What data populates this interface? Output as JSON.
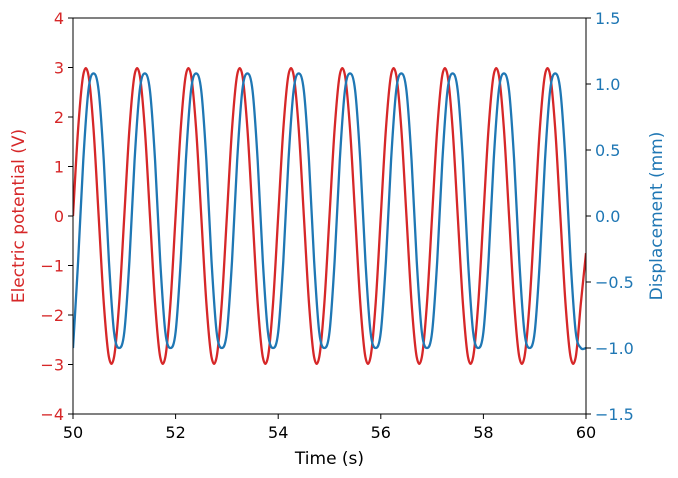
{
  "chart_data": {
    "type": "line",
    "title": "",
    "xlabel": "Time (s)",
    "ylabel_left": "Electric potential (V)",
    "ylabel_right": "Displacement (mm)",
    "xlim": [
      50,
      60
    ],
    "ylim_left": [
      -4,
      4
    ],
    "ylim_right": [
      -1.5,
      1.5
    ],
    "x_ticks": [
      "50",
      "52",
      "54",
      "56",
      "58",
      "60"
    ],
    "y_left_ticks": [
      "−4",
      "−3",
      "−2",
      "−1",
      "0",
      "1",
      "2",
      "3",
      "4"
    ],
    "y_right_ticks": [
      "−1.5",
      "−1.0",
      "−0.5",
      "0.0",
      "0.5",
      "1.0",
      "1.5"
    ],
    "grid": false,
    "legend": "none",
    "colors": {
      "left_axis": "#d62728",
      "right_axis": "#1f77b4"
    },
    "series": [
      {
        "axis": "left",
        "color": "#d62728",
        "x": [
          50.0,
          50.1,
          50.2,
          50.3,
          50.4,
          50.5,
          50.6,
          50.7,
          50.8,
          50.9,
          51.0,
          51.1,
          51.2,
          51.3,
          51.4,
          51.5,
          51.6,
          51.7,
          51.8,
          51.9,
          52.0,
          52.1,
          52.2,
          52.3,
          52.4,
          52.5,
          52.6,
          52.7,
          52.8,
          52.9,
          53.0,
          53.1,
          53.2,
          53.3,
          53.4,
          53.5,
          53.6,
          53.7,
          53.8,
          53.9,
          54.0,
          54.1,
          54.2,
          54.3,
          54.4,
          54.5,
          54.6,
          54.7,
          54.8,
          54.9,
          55.0,
          55.1,
          55.2,
          55.3,
          55.4,
          55.5,
          55.6,
          55.7,
          55.8,
          55.9,
          56.0,
          56.1,
          56.2,
          56.3,
          56.4,
          56.5,
          56.6,
          56.7,
          56.8,
          56.9,
          57.0,
          57.1,
          57.2,
          57.3,
          57.4,
          57.5,
          57.6,
          57.7,
          57.8,
          57.9,
          58.0,
          58.1,
          58.2,
          58.3,
          58.4,
          58.5,
          58.6,
          58.7,
          58.8,
          58.9,
          59.0,
          59.1,
          59.2,
          59.3,
          59.4,
          59.5,
          59.6,
          59.7,
          59.8,
          59.9,
          60.0
        ],
        "y": [
          0.0,
          1.76,
          2.85,
          2.85,
          1.76,
          0.0,
          -1.76,
          -2.85,
          -2.85,
          -1.76,
          0.0,
          1.76,
          2.85,
          2.85,
          1.76,
          0.0,
          -1.76,
          -2.85,
          -2.85,
          -1.76,
          0.0,
          1.76,
          2.85,
          2.85,
          1.76,
          0.0,
          -1.76,
          -2.85,
          -2.85,
          -1.76,
          0.0,
          1.76,
          2.85,
          2.85,
          1.76,
          0.0,
          -1.76,
          -2.85,
          -2.85,
          -1.76,
          0.0,
          1.76,
          2.85,
          2.85,
          1.76,
          0.0,
          -1.76,
          -2.85,
          -2.85,
          -1.76,
          0.0,
          1.76,
          2.85,
          2.85,
          1.76,
          0.0,
          -1.76,
          -2.85,
          -2.85,
          -1.76,
          0.0,
          1.76,
          2.85,
          2.85,
          1.76,
          0.0,
          -1.76,
          -2.85,
          -2.85,
          -1.76,
          0.0,
          1.76,
          2.85,
          2.85,
          1.76,
          0.0,
          -1.76,
          -2.85,
          -2.85,
          -1.76,
          0.0,
          1.76,
          2.85,
          2.85,
          1.76,
          0.0,
          -1.76,
          -2.85,
          -2.85,
          -1.76,
          0.0,
          1.76,
          2.85,
          2.85,
          1.76,
          0.0,
          -1.76,
          -2.85,
          -2.85,
          -1.76,
          -0.75
        ]
      },
      {
        "axis": "right",
        "color": "#1f77b4",
        "x": [
          50.0,
          50.1,
          50.2,
          50.3,
          50.4,
          50.5,
          50.6,
          50.7,
          50.8,
          50.9,
          51.0,
          51.1,
          51.2,
          51.3,
          51.4,
          51.5,
          51.6,
          51.7,
          51.8,
          51.9,
          52.0,
          52.1,
          52.2,
          52.3,
          52.4,
          52.5,
          52.6,
          52.7,
          52.8,
          52.9,
          53.0,
          53.1,
          53.2,
          53.3,
          53.4,
          53.5,
          53.6,
          53.7,
          53.8,
          53.9,
          54.0,
          54.1,
          54.2,
          54.3,
          54.4,
          54.5,
          54.6,
          54.7,
          54.8,
          54.9,
          55.0,
          55.1,
          55.2,
          55.3,
          55.4,
          55.5,
          55.6,
          55.7,
          55.8,
          55.9,
          56.0,
          56.1,
          56.2,
          56.3,
          56.4,
          56.5,
          56.6,
          56.7,
          56.8,
          56.9,
          57.0,
          57.1,
          57.2,
          57.3,
          57.4,
          57.5,
          57.6,
          57.7,
          57.8,
          57.9,
          58.0,
          58.1,
          58.2,
          58.3,
          58.4,
          58.5,
          58.6,
          58.7,
          58.8,
          58.9,
          59.0,
          59.1,
          59.2,
          59.3,
          59.4,
          59.5,
          59.6,
          59.7,
          59.8,
          59.9,
          60.0
        ],
        "y": [
          -1.0,
          -0.34,
          0.42,
          0.95,
          1.08,
          0.95,
          0.42,
          -0.34,
          -0.88,
          -1.0,
          -0.88,
          -0.34,
          0.42,
          0.95,
          1.08,
          0.95,
          0.42,
          -0.34,
          -0.88,
          -1.0,
          -0.88,
          -0.34,
          0.42,
          0.95,
          1.08,
          0.95,
          0.42,
          -0.34,
          -0.88,
          -1.0,
          -0.88,
          -0.34,
          0.42,
          0.95,
          1.08,
          0.95,
          0.42,
          -0.34,
          -0.88,
          -1.0,
          -0.88,
          -0.34,
          0.42,
          0.95,
          1.08,
          0.95,
          0.42,
          -0.34,
          -0.88,
          -1.0,
          -0.88,
          -0.34,
          0.42,
          0.95,
          1.08,
          0.95,
          0.42,
          -0.34,
          -0.88,
          -1.0,
          -0.88,
          -0.34,
          0.42,
          0.95,
          1.08,
          0.95,
          0.42,
          -0.34,
          -0.88,
          -1.0,
          -0.88,
          -0.34,
          0.42,
          0.95,
          1.08,
          0.95,
          0.42,
          -0.34,
          -0.88,
          -1.0,
          -0.88,
          -0.34,
          0.42,
          0.95,
          1.08,
          0.95,
          0.42,
          -0.34,
          -0.88,
          -1.0,
          -0.88,
          -0.34,
          0.42,
          0.95,
          1.08,
          0.95,
          0.42,
          -0.34,
          -0.88,
          -1.0,
          -1.0
        ]
      }
    ]
  }
}
